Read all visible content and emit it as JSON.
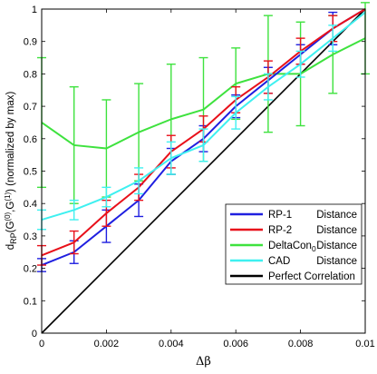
{
  "chart_data": {
    "type": "line",
    "xlabel": "Δβ",
    "ylabel_parts": {
      "d": "d",
      "rp_sub": "RP",
      "paren_open": "(G",
      "sup0": "(0)",
      "comma": ",G",
      "sup1": "(1)",
      "rest": ") (normalized by max)"
    },
    "xlim": [
      0,
      0.01
    ],
    "ylim": [
      0,
      1
    ],
    "xticks": [
      "0",
      "0.002",
      "0.004",
      "0.006",
      "0.008",
      "0.01"
    ],
    "yticks": [
      "0",
      "0.1",
      "0.2",
      "0.3",
      "0.4",
      "0.5",
      "0.6",
      "0.7",
      "0.8",
      "0.9",
      "1"
    ],
    "x": [
      0,
      0.001,
      0.002,
      0.003,
      0.004,
      0.005,
      0.006,
      0.007,
      0.008,
      0.009,
      0.01
    ],
    "legend_position": "bottom-right",
    "series": [
      {
        "name": "RP-1",
        "name_suffix": "Distance",
        "color": "#1f1fe0",
        "values": [
          0.21,
          0.25,
          0.33,
          0.41,
          0.53,
          0.6,
          0.7,
          0.78,
          0.86,
          0.94,
          1.0
        ],
        "err": [
          0.02,
          0.035,
          0.05,
          0.05,
          0.04,
          0.04,
          0.035,
          0.04,
          0.03,
          0.05,
          0.0
        ]
      },
      {
        "name": "RP-2",
        "name_suffix": "Distance",
        "color": "#e8101a",
        "values": [
          0.24,
          0.28,
          0.37,
          0.45,
          0.56,
          0.63,
          0.72,
          0.79,
          0.87,
          0.94,
          1.0
        ],
        "err": [
          0.03,
          0.035,
          0.04,
          0.04,
          0.05,
          0.04,
          0.04,
          0.05,
          0.04,
          0.04,
          0.0
        ]
      },
      {
        "name": "DeltaCon",
        "name_sub": "0",
        "name_suffix": "Distance",
        "color": "#3ee23e",
        "values": [
          0.65,
          0.58,
          0.57,
          0.62,
          0.66,
          0.69,
          0.77,
          0.8,
          0.8,
          0.86,
          0.91
        ],
        "err": [
          0.2,
          0.18,
          0.15,
          0.15,
          0.17,
          0.16,
          0.11,
          0.18,
          0.16,
          0.12,
          0.11
        ]
      },
      {
        "name": "CAD",
        "name_suffix": "Distance",
        "color": "#3ef0f0",
        "values": [
          0.35,
          0.38,
          0.42,
          0.47,
          0.54,
          0.58,
          0.68,
          0.76,
          0.83,
          0.91,
          0.99
        ],
        "err": [
          0.03,
          0.03,
          0.03,
          0.04,
          0.05,
          0.05,
          0.05,
          0.04,
          0.04,
          0.04,
          0.0
        ]
      }
    ],
    "reference_line": {
      "name": "Perfect Correlation",
      "color": "#000000",
      "from": [
        0,
        0
      ],
      "to": [
        0.01,
        1
      ]
    }
  }
}
